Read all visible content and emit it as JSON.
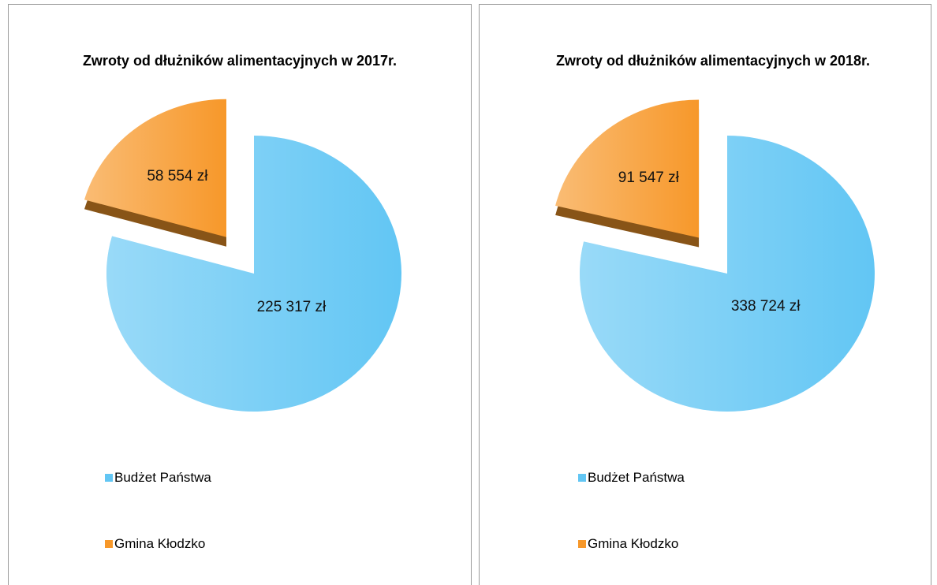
{
  "chart_data": [
    {
      "type": "pie",
      "title": "Zwroty od dłużników alimentacyjnych w 2017r.",
      "categories": [
        "Budżet Państwa",
        "Gmina Kłodzko"
      ],
      "values": [
        225317,
        58554
      ],
      "value_labels": [
        "225 317 zł",
        "58 554 zł"
      ],
      "colors": [
        "#62c6f4",
        "#f7982a"
      ],
      "legend": "bottom"
    },
    {
      "type": "pie",
      "title": "Zwroty od dłużników alimentacyjnych w 2018r.",
      "categories": [
        "Budżet Państwa",
        "Gmina Kłodzko"
      ],
      "values": [
        338724,
        91547
      ],
      "value_labels": [
        "338 724 zł",
        "91 547 zł"
      ],
      "colors": [
        "#62c6f4",
        "#f7982a"
      ],
      "legend": "bottom"
    }
  ]
}
